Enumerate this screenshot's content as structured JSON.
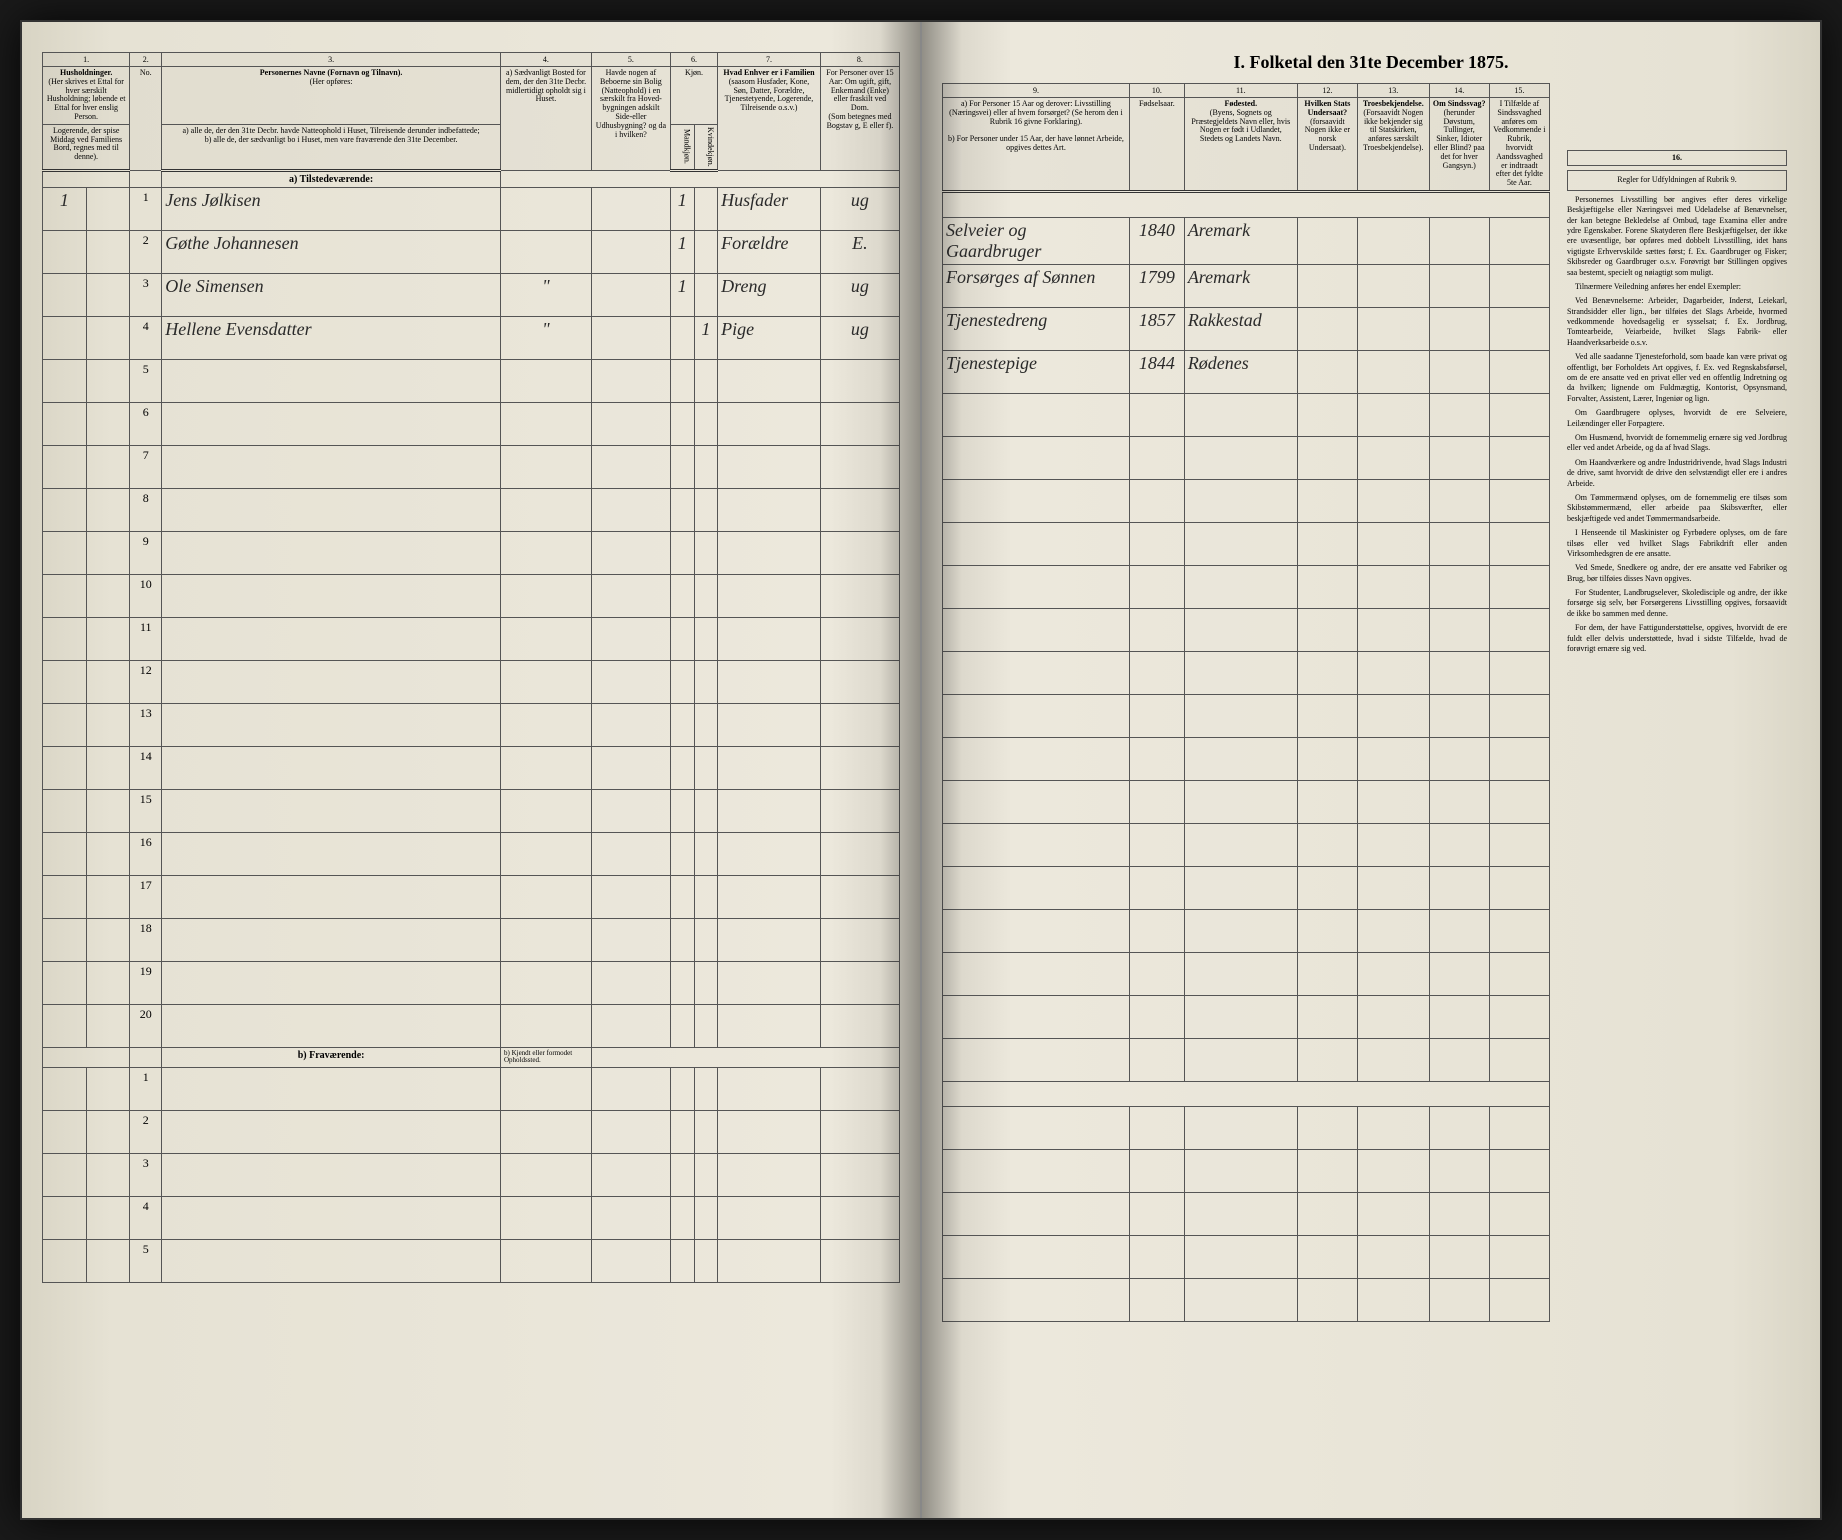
{
  "title": "I. Folketal den 31te December 1875.",
  "columns": {
    "c1": "1.",
    "c2": "2.",
    "c3": "3.",
    "c4": "4.",
    "c5": "5.",
    "c6": "6.",
    "c7": "7.",
    "c8": "8.",
    "c9": "9.",
    "c10": "10.",
    "c11": "11.",
    "c12": "12.",
    "c13": "13.",
    "c14": "14.",
    "c15": "15.",
    "c16": "16."
  },
  "headers": {
    "h1": "Husholdninger.",
    "h1_sub": "(Her skrives et Ettal for hver særskilt Husholdning; løbende et Ettal for hver enslig Person.",
    "h2_sub": "Logerende, der spise Middag ved Familiens Bord, regnes med til denne).",
    "h2_no": "No.",
    "h3": "Personernes Navne (Fornavn og Tilnavn).",
    "h3_sub": "(Her opføres:",
    "h3_a": "a) alle de, der den 31te Decbr. havde Natteophold i Huset, Tilreisende derunder indbefattede;",
    "h3_b": "b) alle de, der sædvanligt bo i Huset, men vare fraværende den 31te December.",
    "h4": "a) Sædvanligt Bosted for dem, der den 31te Decbr. midlertidigt opholdt sig i Huset.",
    "h4_b": "b) Kjendt eller formodet Opholdssted.",
    "h5": "Havde nogen af Beboerne sin Bolig (Natteophold) i en særskilt fra Hoved-bygningen adskilt Side-eller Udhusbygning? og da i hvilken?",
    "h6": "Kjøn.",
    "h6_m": "Mandkjøn.",
    "h6_k": "Kvindekjøn.",
    "h7": "Hvad Enhver er i Familien",
    "h7_sub": "(saasom Husfader, Kone, Søn, Datter, Forældre, Tjenestetyende, Logerende, Tilreisende o.s.v.)",
    "h8": "For Personer over 15 Aar: Om ugift, gift, Enkemand (Enke) eller fraskilt ved Dom.",
    "h8_sub": "(Som betegnes med Bogstav g, E eller f).",
    "h9": "a) For Personer 15 Aar og derover: Livsstilling (Næringsvei) eller af hvem forsørget? (Se herom den i Rubrik 16 givne Forklaring).",
    "h9_b": "b) For Personer under 15 Aar, der have lønnet Arbeide, opgives dettes Art.",
    "h10": "Fødselsaar.",
    "h11": "Fødested.",
    "h11_sub": "(Byens, Sognets og Præstegjeldets Navn eller, hvis Nogen er født i Udlandet, Stedets og Landets Navn.",
    "h12": "Hvilken Stats Undersaat?",
    "h12_sub": "(forsaavidt Nogen ikke er norsk Undersaat).",
    "h13": "Troesbekjendelse.",
    "h13_sub": "(Forsaavidt Nogen ikke bekjender sig til Statskirken, anføres særskilt Troesbekjendelse).",
    "h14": "Om Sindssvag?",
    "h14_sub": "(herunder Døvstum, Tullinger, Sinker, Idioter eller Blind? paa det for hver Gangsyn.)",
    "h15": "I Tilfælde af Sindssvaghed anføres om Vedkommende i Rubrik, hvorvidt Aandssvaghed er indtraadt efter det fyldte 5te Aar.",
    "h16": "Regler for Udfyldningen af Rubrik 9."
  },
  "section_a": "a) Tilstedeværende:",
  "section_b": "b) Fraværende:",
  "rows": [
    {
      "n": "1",
      "hh": "1",
      "name": "Jens Jølkisen",
      "c4": "",
      "c6m": "1",
      "c6k": "",
      "c7": "Husfader",
      "c8": "ug",
      "c9": "Selveier og Gaardbruger",
      "c10": "1840",
      "c11": "Aremark"
    },
    {
      "n": "2",
      "hh": "",
      "name": "Gøthe Johannesen",
      "c4": "",
      "c6m": "1",
      "c6k": "",
      "c7": "Forældre",
      "c8": "E.",
      "c9": "Forsørges af Sønnen",
      "c10": "1799",
      "c11": "Aremark"
    },
    {
      "n": "3",
      "hh": "",
      "name": "Ole Simensen",
      "c4": "\"",
      "c6m": "1",
      "c6k": "",
      "c7": "Dreng",
      "c8": "ug",
      "c9": "Tjenestedreng",
      "c10": "1857",
      "c11": "Rakkestad"
    },
    {
      "n": "4",
      "hh": "",
      "name": "Hellene Evensdatter",
      "c4": "\"",
      "c6m": "",
      "c6k": "1",
      "c7": "Pige",
      "c8": "ug",
      "c9": "Tjenestepige",
      "c10": "1844",
      "c11": "Rødenes"
    }
  ],
  "empty_rows_a": [
    "5",
    "6",
    "7",
    "8",
    "9",
    "10",
    "11",
    "12",
    "13",
    "14",
    "15",
    "16",
    "17",
    "18",
    "19",
    "20"
  ],
  "empty_rows_b": [
    "1",
    "2",
    "3",
    "4",
    "5"
  ],
  "instructions": {
    "title": "",
    "paragraphs": [
      "Personernes Livsstilling bør angives efter deres virkelige Beskjæftigelse eller Næringsvei med Udeladelse af Benævnelser, der kan betegne Bekledelse af Ombud, tage Examina eller andre ydre Egenskaber. Forene Skatyderen flere Beskjæftigelser, der ikke ere uvæsentlige, bør opføres med dobbelt Livsstilling, idet hans vigtigste Erhvervskilde sættes først; f. Ex. Gaardbruger og Fisker; Skibsreder og Gaardbruger o.s.v. Forøvrigt bør Stillingen opgives saa bestemt, specielt og nøiagtigt som muligt.",
      "Tilnærmere Veiledning anføres her endel Exempler:",
      "Ved Benævnelserne: Arbeider, Dagarbeider, Inderst, Leiekarl, Strandsidder eller lign., bør tilføies det Slags Arbeide, hvormed vedkommende hovedsagelig er sysselsat; f. Ex. Jordbrug, Tomtearbeide, Veiarbeide, hvilket Slags Fabrik- eller Haandverksarbeide o.s.v.",
      "Ved alle saadanne Tjenesteforhold, som baade kan være privat og offentligt, bør Forholdets Art opgives, f. Ex. ved Regnskabsførsel, om de ere ansatte ved en privat eller ved en offentlig Indretning og da hvilken; lignende om Fuldmægtig, Kontorist, Opsynsmand, Forvalter, Assistent, Lærer, Ingeniør og lign.",
      "Om Gaardbrugere oplyses, hvorvidt de ere Selveiere, Leilændinger eller Forpagtere.",
      "Om Husmænd, hvorvidt de fornemmelig ernære sig ved Jordbrug eller ved andet Arbeide, og da af hvad Slags.",
      "Om Haandværkere og andre Industridrivende, hvad Slags Industri de drive, samt hvorvidt de drive den selvstændigt eller ere i andres Arbeide.",
      "Om Tømmermænd oplyses, om de fornemmelig ere tilsøs som Skibstømmermænd, eller arbeide paa Skibsværfter, eller beskjæftigede ved andet Tømmermandsarbeide.",
      "I Henseende til Maskinister og Fyrbødere oplyses, om de fare tilsøs eller ved hvilket Slags Fabrikdrift eller anden Virksomhedsgren de ere ansatte.",
      "Ved Smede, Snedkere og andre, der ere ansatte ved Fabriker og Brug, bør tilføies disses Navn opgives.",
      "For Studenter, Landbrugselever, Skoledisciple og andre, der ikke forsørge sig selv, bør Forsørgerens Livsstilling opgives, forsaavidt de ikke bo sammen med denne.",
      "For dem, der have Fattigunderstøttelse, opgives, hvorvidt de ere fuldt eller delvis understøttede, hvad i sidste Tilfælde, hvad de forøvrigt ernære sig ved."
    ]
  },
  "colors": {
    "paper": "#e8e4d8",
    "ink": "#2a2a2a",
    "border": "#555555",
    "background": "#1a1a1a"
  }
}
